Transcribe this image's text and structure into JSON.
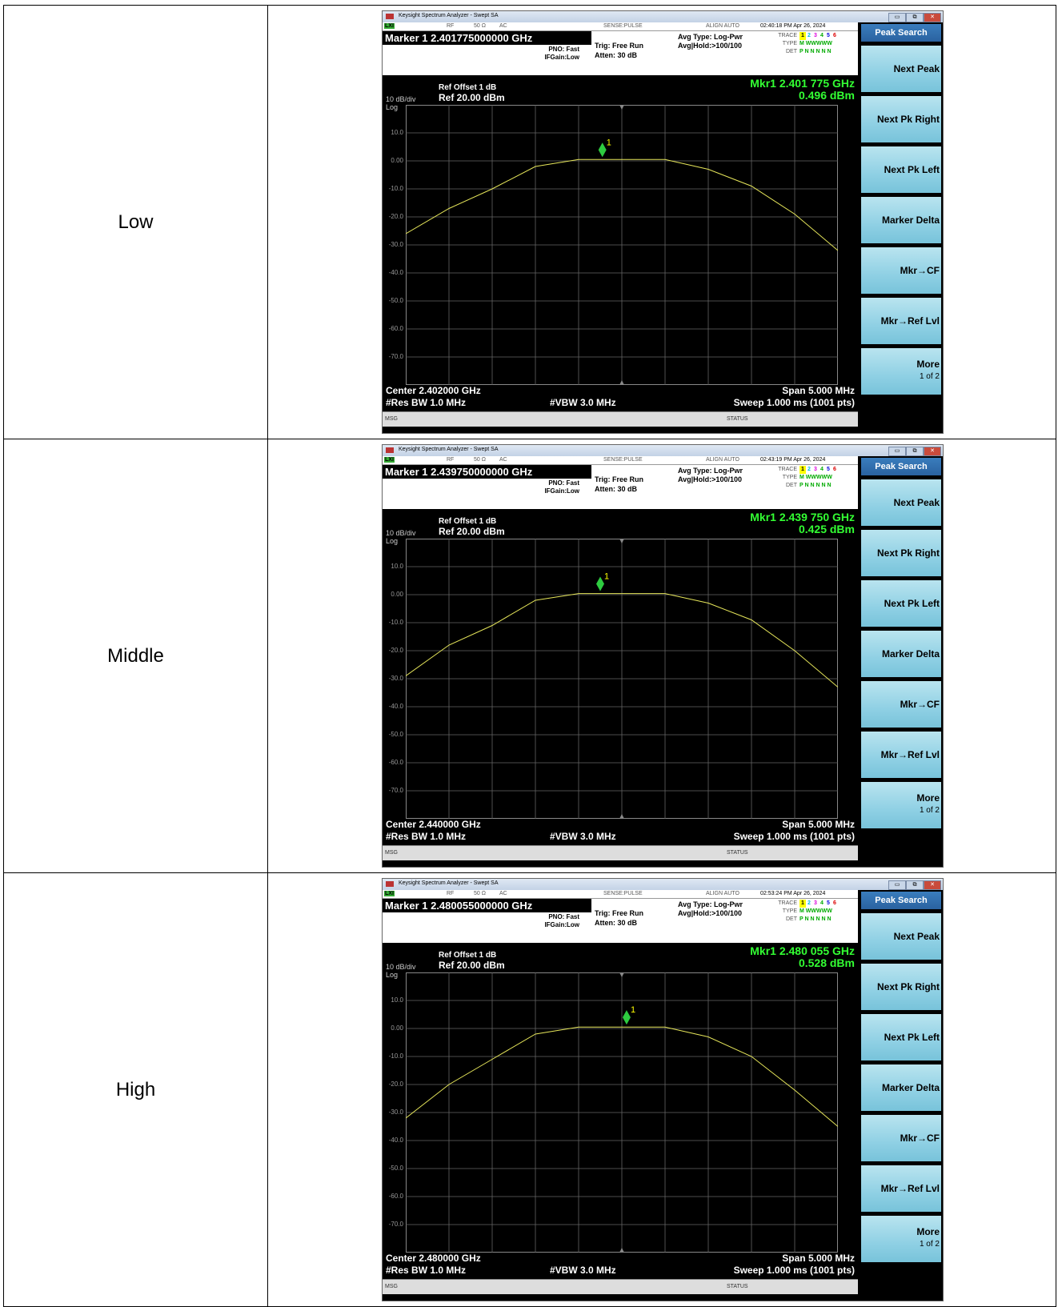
{
  "rows": [
    {
      "label": "Low",
      "window_title": "Keysight Spectrum Analyzer - Swept SA",
      "marker_readout": "Marker 1 2.401775000000 GHz",
      "timestamp": "02:40:18 PM Apr 26, 2024",
      "mkr_freq": "Mkr1 2.401 775 GHz",
      "mkr_amp": "0.496 dBm",
      "center": "Center 2.402000 GHz",
      "marker_x_frac": 0.455,
      "marker_level_db": 0.496
    },
    {
      "label": "Middle",
      "window_title": "Keysight Spectrum Analyzer - Swept SA",
      "marker_readout": "Marker 1 2.439750000000 GHz",
      "timestamp": "02:43:19 PM Apr 26, 2024",
      "mkr_freq": "Mkr1 2.439 750 GHz",
      "mkr_amp": "0.425 dBm",
      "center": "Center 2.440000 GHz",
      "marker_x_frac": 0.45,
      "marker_level_db": 0.425
    },
    {
      "label": "High",
      "window_title": "Keysight Spectrum Analyzer - Swept SA",
      "marker_readout": "Marker 1 2.480055000000 GHz",
      "timestamp": "02:53:24 PM Apr 26, 2024",
      "mkr_freq": "Mkr1 2.480 055 GHz",
      "mkr_amp": "0.528 dBm",
      "center": "Center 2.480000 GHz",
      "marker_x_frac": 0.511,
      "marker_level_db": 0.528
    }
  ],
  "common": {
    "strip": {
      "lxi": "LXI",
      "rf": "RF",
      "ohm": "50 Ω",
      "ac": "AC",
      "sense": "SENSE:PULSE",
      "align": "ALIGN AUTO"
    },
    "pno": "PNO: Fast",
    "ifgain": "IFGain:Low",
    "trig": "Trig: Free Run",
    "atten": "Atten: 30 dB",
    "avg_type": "Avg Type: Log-Pwr",
    "avg_hold": "Avg|Hold:>100/100",
    "trace_key": "TRACE",
    "type_key": "TYPE",
    "det_key": "DET",
    "trace_nums": [
      "1",
      "2",
      "3",
      "4",
      "5",
      "6"
    ],
    "type_val": "M WWWWW",
    "det_val": "P N N N N N",
    "ref_offset": "Ref Offset 1 dB",
    "ref_level": "Ref 20.00 dBm",
    "scale": "10 dB/div",
    "scale_type": "Log",
    "y_ticks": [
      "10.0",
      "0.00",
      "-10.0",
      "-20.0",
      "-30.0",
      "-40.0",
      "-50.0",
      "-60.0",
      "-70.0"
    ],
    "res_bw": "#Res BW 1.0 MHz",
    "vbw": "#VBW 3.0 MHz",
    "span": "Span 5.000 MHz",
    "sweep": "Sweep  1.000 ms (1001 pts)",
    "msg": "MSG",
    "status": "STATUS",
    "marker_num": "1",
    "softkeys": {
      "title": "Peak Search",
      "next_peak": "Next Peak",
      "next_pk_right": "Next Pk Right",
      "next_pk_left": "Next Pk Left",
      "marker_delta": "Marker Delta",
      "mkr_cf": "Mkr→CF",
      "mkr_ref": "Mkr→Ref Lvl",
      "more": "More",
      "more_page": "1 of 2"
    }
  },
  "chart_data": [
    {
      "type": "line",
      "series": [
        {
          "name": "",
          "x_mhz": [
            -2.5,
            -2.0,
            -1.5,
            -1.0,
            -0.5,
            0.0,
            0.5,
            1.0,
            1.5,
            2.0,
            2.5
          ],
          "y": [
            -26,
            -17,
            -10,
            -2,
            0.5,
            0.5,
            0.5,
            -3,
            -9,
            -19,
            -32
          ]
        }
      ],
      "xlabel": "Center 2.402000 GHz",
      "ylim": [
        -80,
        20
      ]
    },
    {
      "type": "line",
      "series": [
        {
          "name": "",
          "x_mhz": [
            -2.5,
            -2.0,
            -1.5,
            -1.0,
            -0.5,
            0.0,
            0.5,
            1.0,
            1.5,
            2.0,
            2.5
          ],
          "y": [
            -29,
            -18,
            -11,
            -2,
            0.4,
            0.4,
            0.4,
            -3,
            -9,
            -20,
            -33
          ]
        }
      ],
      "xlabel": "Center 2.440000 GHz",
      "ylim": [
        -80,
        20
      ]
    },
    {
      "type": "line",
      "series": [
        {
          "name": "",
          "x_mhz": [
            -2.5,
            -2.0,
            -1.5,
            -1.0,
            -0.5,
            0.0,
            0.5,
            1.0,
            1.5,
            2.0,
            2.5
          ],
          "y": [
            -32,
            -20,
            -11,
            -2,
            0.5,
            0.5,
            0.5,
            -3,
            -10,
            -22,
            -35
          ]
        }
      ],
      "xlabel": "Center 2.480000 GHz",
      "ylim": [
        -80,
        20
      ]
    }
  ]
}
